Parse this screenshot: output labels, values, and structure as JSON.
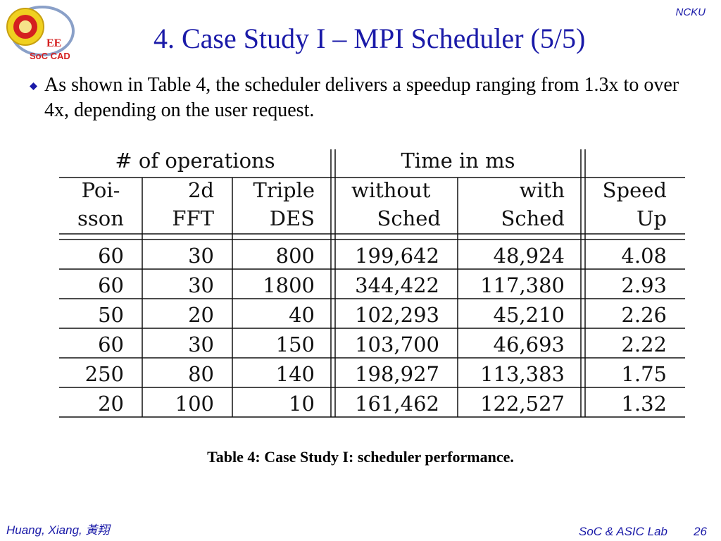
{
  "header": {
    "institution": "NCKU",
    "title": "4. Case Study I – MPI Scheduler (5/5)",
    "logo": {
      "dept_text": "EE",
      "lab_text": "SoC CAD",
      "icon": "university-seal-icon"
    }
  },
  "body": {
    "bullet": "As shown in Table 4, the scheduler delivers a speedup ranging from 1.3x  to over 4x, depending on the user request."
  },
  "table": {
    "group_headers": [
      "# of operations",
      "Time in ms"
    ],
    "columns": [
      [
        "Poi-",
        "sson"
      ],
      [
        "2d",
        "FFT"
      ],
      [
        "Triple",
        "DES"
      ],
      [
        "without",
        "Sched"
      ],
      [
        "with",
        "Sched"
      ],
      [
        "Speed",
        "Up"
      ]
    ],
    "rows": [
      [
        "60",
        "30",
        "800",
        "199,642",
        "48,924",
        "4.08"
      ],
      [
        "60",
        "30",
        "1800",
        "344,422",
        "117,380",
        "2.93"
      ],
      [
        "50",
        "20",
        "40",
        "102,293",
        "45,210",
        "2.26"
      ],
      [
        "60",
        "30",
        "150",
        "103,700",
        "46,693",
        "2.22"
      ],
      [
        "250",
        "80",
        "140",
        "198,927",
        "113,383",
        "1.75"
      ],
      [
        "20",
        "100",
        "10",
        "161,462",
        "122,527",
        "1.32"
      ]
    ],
    "caption": "Table 4: Case Study I: scheduler performance."
  },
  "footer": {
    "author": "Huang, Xiang,  黃翔",
    "lab": "SoC & ASIC Lab",
    "page": "26"
  },
  "colors": {
    "accent": "#1a1aa8",
    "logo_red": "#d42020",
    "logo_yellow": "#f0d020"
  }
}
